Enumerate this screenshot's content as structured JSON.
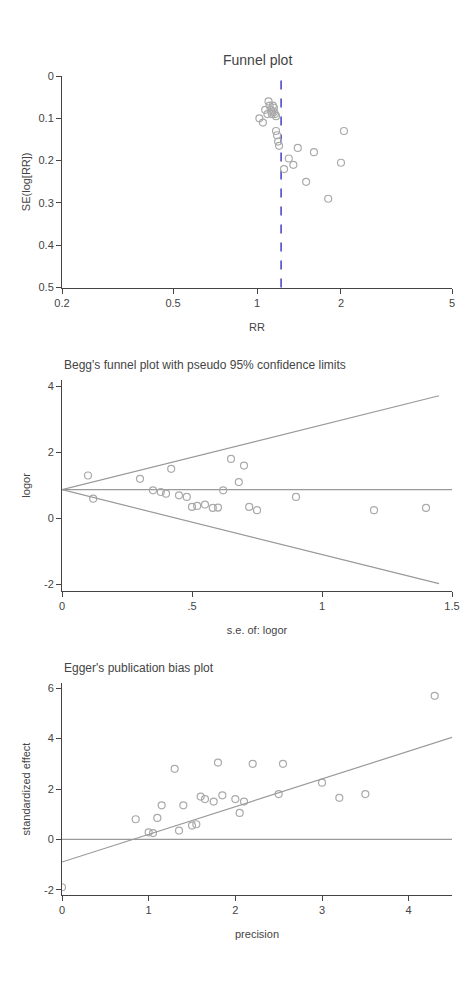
{
  "chart_data": [
    {
      "type": "scatter",
      "title": "Funnel plot",
      "x_label": "RR",
      "y_label": "SE(log[RR])",
      "log": "x",
      "grid": false,
      "xlim": [
        0.2,
        5
      ],
      "ylim": [
        0.5,
        0
      ],
      "xticks": [
        0.2,
        0.5,
        1,
        2,
        5
      ],
      "yticks": [
        0,
        0.1,
        0.2,
        0.3,
        0.4,
        0.5
      ],
      "series": [
        {
          "type": "scatter",
          "marker": "circle-open",
          "color": "#aaaaaa",
          "x": [
            1.02,
            1.05,
            1.07,
            1.09,
            1.1,
            1.11,
            1.12,
            1.13,
            1.13,
            1.14,
            1.15,
            1.15,
            1.16,
            1.17,
            1.17,
            1.18,
            1.19,
            1.2,
            1.25,
            1.3,
            1.35,
            1.4,
            1.5,
            1.6,
            1.8,
            2.0,
            2.05
          ],
          "values": [
            0.1,
            0.11,
            0.08,
            0.09,
            0.06,
            0.07,
            0.08,
            0.085,
            0.09,
            0.07,
            0.075,
            0.085,
            0.09,
            0.095,
            0.13,
            0.14,
            0.155,
            0.165,
            0.22,
            0.195,
            0.21,
            0.17,
            0.25,
            0.18,
            0.29,
            0.205,
            0.13
          ]
        }
      ],
      "vline": {
        "x": 1.22,
        "color": "#3333bb",
        "line_style": "dashed"
      }
    },
    {
      "type": "scatter",
      "title": "Begg's funnel plot with pseudo 95% confidence limits",
      "x_label": "s.e. of: logor",
      "y_label": "logor",
      "grid": false,
      "xlim": [
        0,
        1.5
      ],
      "ylim": [
        -2.2,
        4.2
      ],
      "xticks": [
        0,
        {
          "value": 0.5,
          "label": ".5"
        },
        1,
        1.5
      ],
      "yticks": [
        -2,
        0,
        2,
        4
      ],
      "series": [
        {
          "type": "scatter",
          "marker": "circle-open",
          "color": "#aaaaaa",
          "x": [
            0.1,
            0.12,
            0.3,
            0.35,
            0.38,
            0.4,
            0.42,
            0.45,
            0.48,
            0.5,
            0.52,
            0.55,
            0.58,
            0.6,
            0.62,
            0.65,
            0.68,
            0.7,
            0.72,
            0.75,
            0.9,
            1.2,
            1.4
          ],
          "values": [
            1.3,
            0.6,
            1.2,
            0.85,
            0.8,
            0.75,
            1.5,
            0.7,
            0.65,
            0.35,
            0.38,
            0.42,
            0.32,
            0.33,
            0.85,
            1.8,
            1.1,
            1.6,
            0.35,
            0.25,
            0.65,
            0.25,
            0.32
          ]
        },
        {
          "type": "line",
          "line_style": "solid",
          "color": "#999999",
          "x": [
            0,
            1.45
          ],
          "values": [
            0.87,
            3.712
          ]
        },
        {
          "type": "line",
          "line_style": "solid",
          "color": "#999999",
          "x": [
            0,
            1.45
          ],
          "values": [
            0.87,
            -1.972
          ]
        }
      ],
      "hline": {
        "y": 0.87,
        "color": "#999999",
        "line_style": "solid"
      }
    },
    {
      "type": "scatter",
      "title": "Egger's publication bias plot",
      "x_label": "precision",
      "y_label": "standardized effect",
      "grid": false,
      "xlim": [
        0,
        4.5
      ],
      "ylim": [
        -2.2,
        6.2
      ],
      "xticks": [
        0,
        1,
        2,
        3,
        4
      ],
      "yticks": [
        -2,
        0,
        2,
        4,
        6
      ],
      "series": [
        {
          "type": "scatter",
          "marker": "circle-open",
          "color": "#aaaaaa",
          "x": [
            0.0,
            0.85,
            1.0,
            1.05,
            1.1,
            1.15,
            1.3,
            1.35,
            1.4,
            1.5,
            1.55,
            1.6,
            1.65,
            1.75,
            1.8,
            1.85,
            2.0,
            2.05,
            2.1,
            2.2,
            2.5,
            2.55,
            3.0,
            3.2,
            3.5,
            4.3
          ],
          "values": [
            -1.9,
            0.8,
            0.28,
            0.25,
            0.85,
            1.35,
            2.8,
            0.35,
            1.35,
            0.55,
            0.6,
            1.7,
            1.6,
            1.5,
            3.05,
            1.75,
            1.6,
            1.05,
            1.5,
            3.0,
            1.8,
            3.0,
            2.25,
            1.65,
            1.8,
            5.7
          ]
        },
        {
          "type": "line",
          "line_style": "solid",
          "color": "#999999",
          "x": [
            0,
            4.5
          ],
          "values": [
            -0.9,
            4.05
          ]
        }
      ],
      "hline": {
        "y": 0,
        "color": "#999999",
        "line_style": "solid"
      }
    }
  ]
}
